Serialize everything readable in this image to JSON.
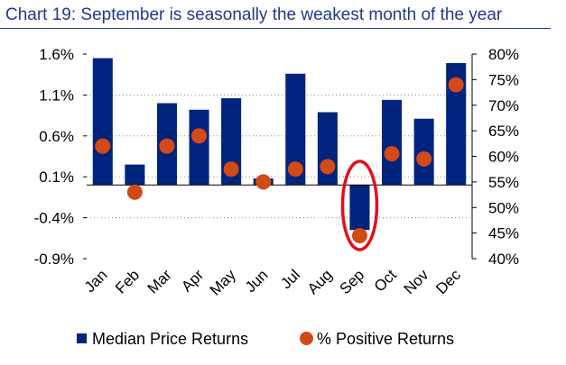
{
  "title": "Chart 19: September is seasonally the weakest month of the year",
  "colors": {
    "bar": "#00247d",
    "dot": "#d24a16",
    "highlight": "#e4101c",
    "title": "#1f3b8a"
  },
  "legend": {
    "bar_label": "Median Price Returns",
    "dot_label": "% Positive Returns"
  },
  "chart_data": {
    "type": "bar",
    "categories": [
      "Jan",
      "Feb",
      "Mar",
      "Apr",
      "May",
      "Jun",
      "Jul",
      "Aug",
      "Sep",
      "Oct",
      "Nov",
      "Dec"
    ],
    "series": [
      {
        "name": "Median Price Returns",
        "type": "bar",
        "axis": "left",
        "values": [
          1.55,
          0.25,
          1.0,
          0.92,
          1.06,
          0.08,
          1.36,
          0.89,
          -0.55,
          1.04,
          0.81,
          1.49
        ]
      },
      {
        "name": "% Positive Returns",
        "type": "scatter",
        "axis": "right",
        "values": [
          62,
          53,
          62,
          64,
          57.5,
          55,
          57.5,
          58,
          44.5,
          60.5,
          59.5,
          74
        ]
      }
    ],
    "left_axis": {
      "ticks": [
        "1.6%",
        "1.1%",
        "0.6%",
        "0.1%",
        "-0.4%",
        "-0.9%"
      ],
      "tick_values": [
        1.6,
        1.1,
        0.6,
        0.1,
        -0.4,
        -0.9
      ],
      "range": [
        -0.9,
        1.6
      ]
    },
    "right_axis": {
      "ticks": [
        "80%",
        "75%",
        "70%",
        "65%",
        "60%",
        "55%",
        "50%",
        "45%",
        "40%"
      ],
      "tick_values": [
        80,
        75,
        70,
        65,
        60,
        55,
        50,
        45,
        40
      ],
      "range": [
        40,
        80
      ]
    },
    "grid": true,
    "highlight": {
      "category": "Sep",
      "shape": "ellipse"
    }
  }
}
